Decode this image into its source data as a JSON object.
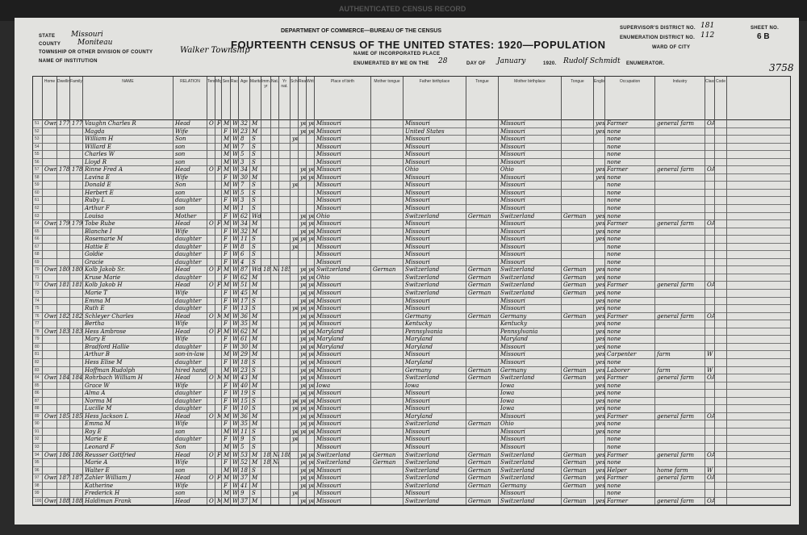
{
  "header": {
    "watermark": "AUTHENTICATED CENSUS RECORD",
    "department": "DEPARTMENT OF COMMERCE—BUREAU OF THE CENSUS",
    "title": "FOURTEENTH CENSUS OF THE UNITED STATES: 1920—POPULATION",
    "state_label": "STATE",
    "state": "Missouri",
    "county_label": "COUNTY",
    "county": "Moniteau",
    "township_label": "TOWNSHIP OR OTHER DIVISION OF COUNTY",
    "township": "Walker Township",
    "institution_label": "NAME OF INSTITUTION",
    "incorporated_label": "NAME OF INCORPORATED PLACE",
    "enumerated_label": "ENUMERATED BY ME ON THE",
    "day": "28",
    "day_label": "DAY OF",
    "month": "January",
    "year": "1920.",
    "enumerator": "Rudolf Schmidt",
    "enumerator_label": "ENUMERATOR.",
    "supervisor_label": "SUPERVISOR'S DISTRICT NO.",
    "supervisor": "181",
    "ed_label": "ENUMERATION DISTRICT NO.",
    "ed": "112",
    "ward_label": "WARD OF CITY",
    "sheet_label": "SHEET NO.",
    "sheet": "6 B",
    "stamp": "3758"
  },
  "columns": [
    "",
    "Home",
    "Dwelling",
    "Family",
    "NAME",
    "RELATION",
    "Tenure",
    "Mtg",
    "Sex",
    "Race",
    "Age",
    "Marital",
    "Imm. yr",
    "Nat.",
    "Yr nat.",
    "School",
    "Read",
    "Write",
    "Place of birth",
    "Mother tongue",
    "Father birthplace",
    "Tongue",
    "Mother birthplace",
    "Tongue",
    "English",
    "Occupation",
    "Industry",
    "Class",
    "Code"
  ],
  "rows": [
    [
      51,
      "Own",
      "177",
      "177",
      "Vaughn Charles R",
      "Head",
      "O",
      "F",
      "M",
      "W",
      "32",
      "M",
      "",
      "",
      "",
      "",
      "yes",
      "yes",
      "Missouri",
      "",
      "Missouri",
      "",
      "Missouri",
      "",
      "yes",
      "Farmer",
      "general farm",
      "OA",
      ""
    ],
    [
      52,
      "",
      "",
      "",
      "Magda",
      "Wife",
      "",
      "",
      "F",
      "W",
      "23",
      "M",
      "",
      "",
      "",
      "",
      "yes",
      "yes",
      "Missouri",
      "",
      "United States",
      "",
      "Missouri",
      "",
      "yes",
      "none",
      "",
      "",
      ""
    ],
    [
      53,
      "",
      "",
      "",
      "William H",
      "Son",
      "",
      "",
      "M",
      "W",
      "8",
      "S",
      "",
      "",
      "",
      "yes",
      "",
      "",
      "Missouri",
      "",
      "Missouri",
      "",
      "Missouri",
      "",
      "",
      "none",
      "",
      "",
      ""
    ],
    [
      54,
      "",
      "",
      "",
      "Willard E",
      "son",
      "",
      "",
      "M",
      "W",
      "7",
      "S",
      "",
      "",
      "",
      "",
      "",
      "",
      "Missouri",
      "",
      "Missouri",
      "",
      "Missouri",
      "",
      "",
      "none",
      "",
      "",
      ""
    ],
    [
      55,
      "",
      "",
      "",
      "Charles W",
      "son",
      "",
      "",
      "M",
      "W",
      "5",
      "S",
      "",
      "",
      "",
      "",
      "",
      "",
      "Missouri",
      "",
      "Missouri",
      "",
      "Missouri",
      "",
      "",
      "none",
      "",
      "",
      ""
    ],
    [
      56,
      "",
      "",
      "",
      "Lloyd R",
      "son",
      "",
      "",
      "M",
      "W",
      "3",
      "S",
      "",
      "",
      "",
      "",
      "",
      "",
      "Missouri",
      "",
      "Missouri",
      "",
      "Missouri",
      "",
      "",
      "none",
      "",
      "",
      ""
    ],
    [
      57,
      "Own",
      "178",
      "178",
      "Rinne Fred A",
      "Head",
      "O",
      "F",
      "M",
      "W",
      "34",
      "M",
      "",
      "",
      "",
      "",
      "yes",
      "yes",
      "Missouri",
      "",
      "Ohio",
      "",
      "Ohio",
      "",
      "yes",
      "Farmer",
      "general farm",
      "OA",
      ""
    ],
    [
      58,
      "",
      "",
      "",
      "Lavina E",
      "Wife",
      "",
      "",
      "F",
      "W",
      "30",
      "M",
      "",
      "",
      "",
      "",
      "yes",
      "yes",
      "Missouri",
      "",
      "Missouri",
      "",
      "Missouri",
      "",
      "yes",
      "none",
      "",
      "",
      ""
    ],
    [
      59,
      "",
      "",
      "",
      "Donald E",
      "Son",
      "",
      "",
      "M",
      "W",
      "7",
      "S",
      "",
      "",
      "",
      "yes",
      "",
      "",
      "Missouri",
      "",
      "Missouri",
      "",
      "Missouri",
      "",
      "",
      "none",
      "",
      "",
      ""
    ],
    [
      60,
      "",
      "",
      "",
      "Herbert E",
      "son",
      "",
      "",
      "M",
      "W",
      "5",
      "S",
      "",
      "",
      "",
      "",
      "",
      "",
      "Missouri",
      "",
      "Missouri",
      "",
      "Missouri",
      "",
      "",
      "none",
      "",
      "",
      ""
    ],
    [
      61,
      "",
      "",
      "",
      "Ruby L",
      "daughter",
      "",
      "",
      "F",
      "W",
      "3",
      "S",
      "",
      "",
      "",
      "",
      "",
      "",
      "Missouri",
      "",
      "Missouri",
      "",
      "Missouri",
      "",
      "",
      "none",
      "",
      "",
      ""
    ],
    [
      62,
      "",
      "",
      "",
      "Arthur F",
      "son",
      "",
      "",
      "M",
      "W",
      "1",
      "S",
      "",
      "",
      "",
      "",
      "",
      "",
      "Missouri",
      "",
      "Missouri",
      "",
      "Missouri",
      "",
      "",
      "none",
      "",
      "",
      ""
    ],
    [
      63,
      "",
      "",
      "",
      "Louisa",
      "Mother",
      "",
      "",
      "F",
      "W",
      "62",
      "Wd",
      "",
      "",
      "",
      "",
      "yes",
      "yes",
      "Ohio",
      "",
      "Switzerland",
      "German",
      "Switzerland",
      "German",
      "yes",
      "none",
      "",
      "",
      ""
    ],
    [
      64,
      "Own",
      "179",
      "179",
      "Tobe Rube",
      "Head",
      "O",
      "F",
      "M",
      "W",
      "34",
      "M",
      "",
      "",
      "",
      "",
      "yes",
      "yes",
      "Missouri",
      "",
      "Missouri",
      "",
      "Missouri",
      "",
      "yes",
      "Farmer",
      "general farm",
      "OA",
      ""
    ],
    [
      65,
      "",
      "",
      "",
      "Blanche I",
      "Wife",
      "",
      "",
      "F",
      "W",
      "32",
      "M",
      "",
      "",
      "",
      "",
      "yes",
      "yes",
      "Missouri",
      "",
      "Missouri",
      "",
      "Missouri",
      "",
      "yes",
      "none",
      "",
      "",
      ""
    ],
    [
      66,
      "",
      "",
      "",
      "Rosemarie M",
      "daughter",
      "",
      "",
      "F",
      "W",
      "11",
      "S",
      "",
      "",
      "",
      "yes",
      "yes",
      "yes",
      "Missouri",
      "",
      "Missouri",
      "",
      "Missouri",
      "",
      "yes",
      "none",
      "",
      "",
      ""
    ],
    [
      67,
      "",
      "",
      "",
      "Hattie E",
      "daughter",
      "",
      "",
      "F",
      "W",
      "8",
      "S",
      "",
      "",
      "",
      "yes",
      "",
      "",
      "Missouri",
      "",
      "Missouri",
      "",
      "Missouri",
      "",
      "",
      "none",
      "",
      "",
      ""
    ],
    [
      68,
      "",
      "",
      "",
      "Goldie",
      "daughter",
      "",
      "",
      "F",
      "W",
      "6",
      "S",
      "",
      "",
      "",
      "",
      "",
      "",
      "Missouri",
      "",
      "Missouri",
      "",
      "Missouri",
      "",
      "",
      "none",
      "",
      "",
      ""
    ],
    [
      69,
      "",
      "",
      "",
      "Gracie",
      "daughter",
      "",
      "",
      "F",
      "W",
      "4",
      "S",
      "",
      "",
      "",
      "",
      "",
      "",
      "Missouri",
      "",
      "Missouri",
      "",
      "Missouri",
      "",
      "",
      "none",
      "",
      "",
      ""
    ],
    [
      70,
      "Own",
      "180",
      "180",
      "Kolb Jakob Sr.",
      "Head",
      "O",
      "F",
      "M",
      "W",
      "87",
      "Wd",
      "1852",
      "Na",
      "1857",
      "",
      "yes",
      "yes",
      "Switzerland",
      "German",
      "Switzerland",
      "German",
      "Switzerland",
      "German",
      "yes",
      "none",
      "",
      "",
      ""
    ],
    [
      71,
      "",
      "",
      "",
      "Kruse Marie",
      "daughter",
      "",
      "",
      "F",
      "W",
      "62",
      "M",
      "",
      "",
      "",
      "",
      "yes",
      "yes",
      "Ohio",
      "",
      "Switzerland",
      "German",
      "Switzerland",
      "German",
      "yes",
      "none",
      "",
      "",
      ""
    ],
    [
      72,
      "Own",
      "181",
      "181",
      "Kolb Jakob H",
      "Head",
      "O",
      "F",
      "M",
      "W",
      "51",
      "M",
      "",
      "",
      "",
      "",
      "yes",
      "yes",
      "Missouri",
      "",
      "Switzerland",
      "German",
      "Switzerland",
      "German",
      "yes",
      "Farmer",
      "general farm",
      "OA",
      ""
    ],
    [
      73,
      "",
      "",
      "",
      "Marie T",
      "Wife",
      "",
      "",
      "F",
      "W",
      "45",
      "M",
      "",
      "",
      "",
      "",
      "yes",
      "yes",
      "Missouri",
      "",
      "Switzerland",
      "German",
      "Switzerland",
      "German",
      "yes",
      "none",
      "",
      "",
      ""
    ],
    [
      74,
      "",
      "",
      "",
      "Emma M",
      "daughter",
      "",
      "",
      "F",
      "W",
      "17",
      "S",
      "",
      "",
      "",
      "",
      "yes",
      "yes",
      "Missouri",
      "",
      "Missouri",
      "",
      "Missouri",
      "",
      "yes",
      "none",
      "",
      "",
      ""
    ],
    [
      75,
      "",
      "",
      "",
      "Ruth E",
      "daughter",
      "",
      "",
      "F",
      "W",
      "13",
      "S",
      "",
      "",
      "",
      "yes",
      "yes",
      "yes",
      "Missouri",
      "",
      "Missouri",
      "",
      "Missouri",
      "",
      "yes",
      "none",
      "",
      "",
      ""
    ],
    [
      76,
      "Own",
      "182",
      "182",
      "Schleyer Charles",
      "Head",
      "O",
      "M",
      "M",
      "W",
      "36",
      "M",
      "",
      "",
      "",
      "",
      "yes",
      "yes",
      "Missouri",
      "",
      "Germany",
      "German",
      "Germany",
      "German",
      "yes",
      "Farmer",
      "general farm",
      "OA",
      ""
    ],
    [
      77,
      "",
      "",
      "",
      "Bertha",
      "Wife",
      "",
      "",
      "F",
      "W",
      "35",
      "M",
      "",
      "",
      "",
      "",
      "yes",
      "yes",
      "Missouri",
      "",
      "Kentucky",
      "",
      "Kentucky",
      "",
      "yes",
      "none",
      "",
      "",
      ""
    ],
    [
      78,
      "Own",
      "183",
      "183",
      "Hess Ambrose",
      "Head",
      "O",
      "F",
      "M",
      "W",
      "62",
      "M",
      "",
      "",
      "",
      "",
      "yes",
      "yes",
      "Maryland",
      "",
      "Pennsylvania",
      "",
      "Pennsylvania",
      "",
      "yes",
      "none",
      "",
      "",
      ""
    ],
    [
      79,
      "",
      "",
      "",
      "Mary E",
      "Wife",
      "",
      "",
      "F",
      "W",
      "61",
      "M",
      "",
      "",
      "",
      "",
      "yes",
      "yes",
      "Maryland",
      "",
      "Maryland",
      "",
      "Maryland",
      "",
      "yes",
      "none",
      "",
      "",
      ""
    ],
    [
      80,
      "",
      "",
      "",
      "Bradford Hallie",
      "daughter",
      "",
      "",
      "F",
      "W",
      "30",
      "M",
      "",
      "",
      "",
      "",
      "yes",
      "yes",
      "Maryland",
      "",
      "Maryland",
      "",
      "Missouri",
      "",
      "yes",
      "none",
      "",
      "",
      ""
    ],
    [
      81,
      "",
      "",
      "",
      "Arthur B",
      "son-in-law",
      "",
      "",
      "M",
      "W",
      "29",
      "M",
      "",
      "",
      "",
      "",
      "yes",
      "yes",
      "Missouri",
      "",
      "Missouri",
      "",
      "Missouri",
      "",
      "yes",
      "Carpenter",
      "farm",
      "W",
      ""
    ],
    [
      82,
      "",
      "",
      "",
      "Hess Elise M",
      "daughter",
      "",
      "",
      "F",
      "W",
      "18",
      "S",
      "",
      "",
      "",
      "",
      "yes",
      "yes",
      "Missouri",
      "",
      "Maryland",
      "",
      "Missouri",
      "",
      "yes",
      "none",
      "",
      "",
      ""
    ],
    [
      83,
      "",
      "",
      "",
      "Hoffman Rudolph",
      "hired hand",
      "",
      "",
      "M",
      "W",
      "23",
      "S",
      "",
      "",
      "",
      "",
      "yes",
      "yes",
      "Missouri",
      "",
      "Germany",
      "German",
      "Germany",
      "German",
      "yes",
      "Laborer",
      "farm",
      "W",
      ""
    ],
    [
      84,
      "Own",
      "184",
      "184",
      "Rohrbach William H",
      "Head",
      "O",
      "M",
      "M",
      "W",
      "43",
      "M",
      "",
      "",
      "",
      "",
      "yes",
      "yes",
      "Missouri",
      "",
      "Switzerland",
      "German",
      "Switzerland",
      "German",
      "yes",
      "Farmer",
      "general farm",
      "OA",
      ""
    ],
    [
      85,
      "",
      "",
      "",
      "Grace W",
      "Wife",
      "",
      "",
      "F",
      "W",
      "40",
      "M",
      "",
      "",
      "",
      "",
      "yes",
      "yes",
      "Iowa",
      "",
      "Iowa",
      "",
      "Iowa",
      "",
      "yes",
      "none",
      "",
      "",
      ""
    ],
    [
      86,
      "",
      "",
      "",
      "Alma A",
      "daughter",
      "",
      "",
      "F",
      "W",
      "19",
      "S",
      "",
      "",
      "",
      "",
      "yes",
      "yes",
      "Missouri",
      "",
      "Missouri",
      "",
      "Iowa",
      "",
      "yes",
      "none",
      "",
      "",
      ""
    ],
    [
      87,
      "",
      "",
      "",
      "Norma M",
      "daughter",
      "",
      "",
      "F",
      "W",
      "15",
      "S",
      "",
      "",
      "",
      "yes",
      "yes",
      "yes",
      "Missouri",
      "",
      "Missouri",
      "",
      "Iowa",
      "",
      "yes",
      "none",
      "",
      "",
      ""
    ],
    [
      88,
      "",
      "",
      "",
      "Lucille M",
      "daughter",
      "",
      "",
      "F",
      "W",
      "10",
      "S",
      "",
      "",
      "",
      "yes",
      "yes",
      "yes",
      "Missouri",
      "",
      "Missouri",
      "",
      "Iowa",
      "",
      "yes",
      "none",
      "",
      "",
      ""
    ],
    [
      89,
      "Own",
      "185",
      "185",
      "Hess Jackson L",
      "Head",
      "O",
      "M",
      "M",
      "W",
      "36",
      "M",
      "",
      "",
      "",
      "",
      "yes",
      "yes",
      "Missouri",
      "",
      "Maryland",
      "",
      "Missouri",
      "",
      "yes",
      "Farmer",
      "general farm",
      "OA",
      ""
    ],
    [
      90,
      "",
      "",
      "",
      "Emma M",
      "Wife",
      "",
      "",
      "F",
      "W",
      "35",
      "M",
      "",
      "",
      "",
      "",
      "yes",
      "yes",
      "Missouri",
      "",
      "Switzerland",
      "German",
      "Ohio",
      "",
      "yes",
      "none",
      "",
      "",
      ""
    ],
    [
      91,
      "",
      "",
      "",
      "Roy E",
      "son",
      "",
      "",
      "M",
      "W",
      "11",
      "S",
      "",
      "",
      "",
      "yes",
      "yes",
      "yes",
      "Missouri",
      "",
      "Missouri",
      "",
      "Missouri",
      "",
      "yes",
      "none",
      "",
      "",
      ""
    ],
    [
      92,
      "",
      "",
      "",
      "Marie E",
      "daughter",
      "",
      "",
      "F",
      "W",
      "9",
      "S",
      "",
      "",
      "",
      "yes",
      "",
      "",
      "Missouri",
      "",
      "Missouri",
      "",
      "Missouri",
      "",
      "",
      "none",
      "",
      "",
      ""
    ],
    [
      93,
      "",
      "",
      "",
      "Leonard F",
      "Son",
      "",
      "",
      "M",
      "W",
      "5",
      "S",
      "",
      "",
      "",
      "",
      "",
      "",
      "Missouri",
      "",
      "Missouri",
      "",
      "Missouri",
      "",
      "",
      "none",
      "",
      "",
      ""
    ],
    [
      94,
      "Own",
      "186",
      "186",
      "Reusser Gottfried",
      "Head",
      "O",
      "F",
      "M",
      "W",
      "53",
      "M",
      "1880",
      "Na",
      "1887",
      "",
      "yes",
      "yes",
      "Switzerland",
      "German",
      "Switzerland",
      "German",
      "Switzerland",
      "German",
      "yes",
      "Farmer",
      "general farm",
      "OA",
      ""
    ],
    [
      95,
      "",
      "",
      "",
      "Marie A",
      "Wife",
      "",
      "",
      "F",
      "W",
      "52",
      "M",
      "1887",
      "Na",
      "",
      "",
      "yes",
      "yes",
      "Switzerland",
      "German",
      "Switzerland",
      "German",
      "Switzerland",
      "German",
      "yes",
      "none",
      "",
      "",
      ""
    ],
    [
      96,
      "",
      "",
      "",
      "Walter E",
      "son",
      "",
      "",
      "M",
      "W",
      "18",
      "S",
      "",
      "",
      "",
      "",
      "yes",
      "yes",
      "Missouri",
      "",
      "Switzerland",
      "German",
      "Switzerland",
      "German",
      "yes",
      "Helper",
      "home farm",
      "W",
      ""
    ],
    [
      97,
      "Own",
      "187",
      "187",
      "Zahler William J",
      "Head",
      "O",
      "F",
      "M",
      "W",
      "37",
      "M",
      "",
      "",
      "",
      "",
      "yes",
      "yes",
      "Missouri",
      "",
      "Switzerland",
      "German",
      "Switzerland",
      "German",
      "yes",
      "Farmer",
      "general farm",
      "OA",
      ""
    ],
    [
      98,
      "",
      "",
      "",
      "Katherine",
      "Wife",
      "",
      "",
      "F",
      "W",
      "41",
      "M",
      "",
      "",
      "",
      "",
      "yes",
      "yes",
      "Missouri",
      "",
      "Switzerland",
      "German",
      "Germany",
      "German",
      "yes",
      "none",
      "",
      "",
      ""
    ],
    [
      99,
      "",
      "",
      "",
      "Frederick H",
      "son",
      "",
      "",
      "M",
      "W",
      "9",
      "S",
      "",
      "",
      "",
      "yes",
      "",
      "",
      "Missouri",
      "",
      "Missouri",
      "",
      "Missouri",
      "",
      "",
      "none",
      "",
      "",
      ""
    ],
    [
      100,
      "Own",
      "188",
      "188",
      "Haldiman Frank",
      "Head",
      "O",
      "M",
      "M",
      "W",
      "37",
      "M",
      "",
      "",
      "",
      "",
      "yes",
      "yes",
      "Missouri",
      "",
      "Switzerland",
      "German",
      "Switzerland",
      "German",
      "yes",
      "Farmer",
      "general farm",
      "OA",
      ""
    ]
  ]
}
